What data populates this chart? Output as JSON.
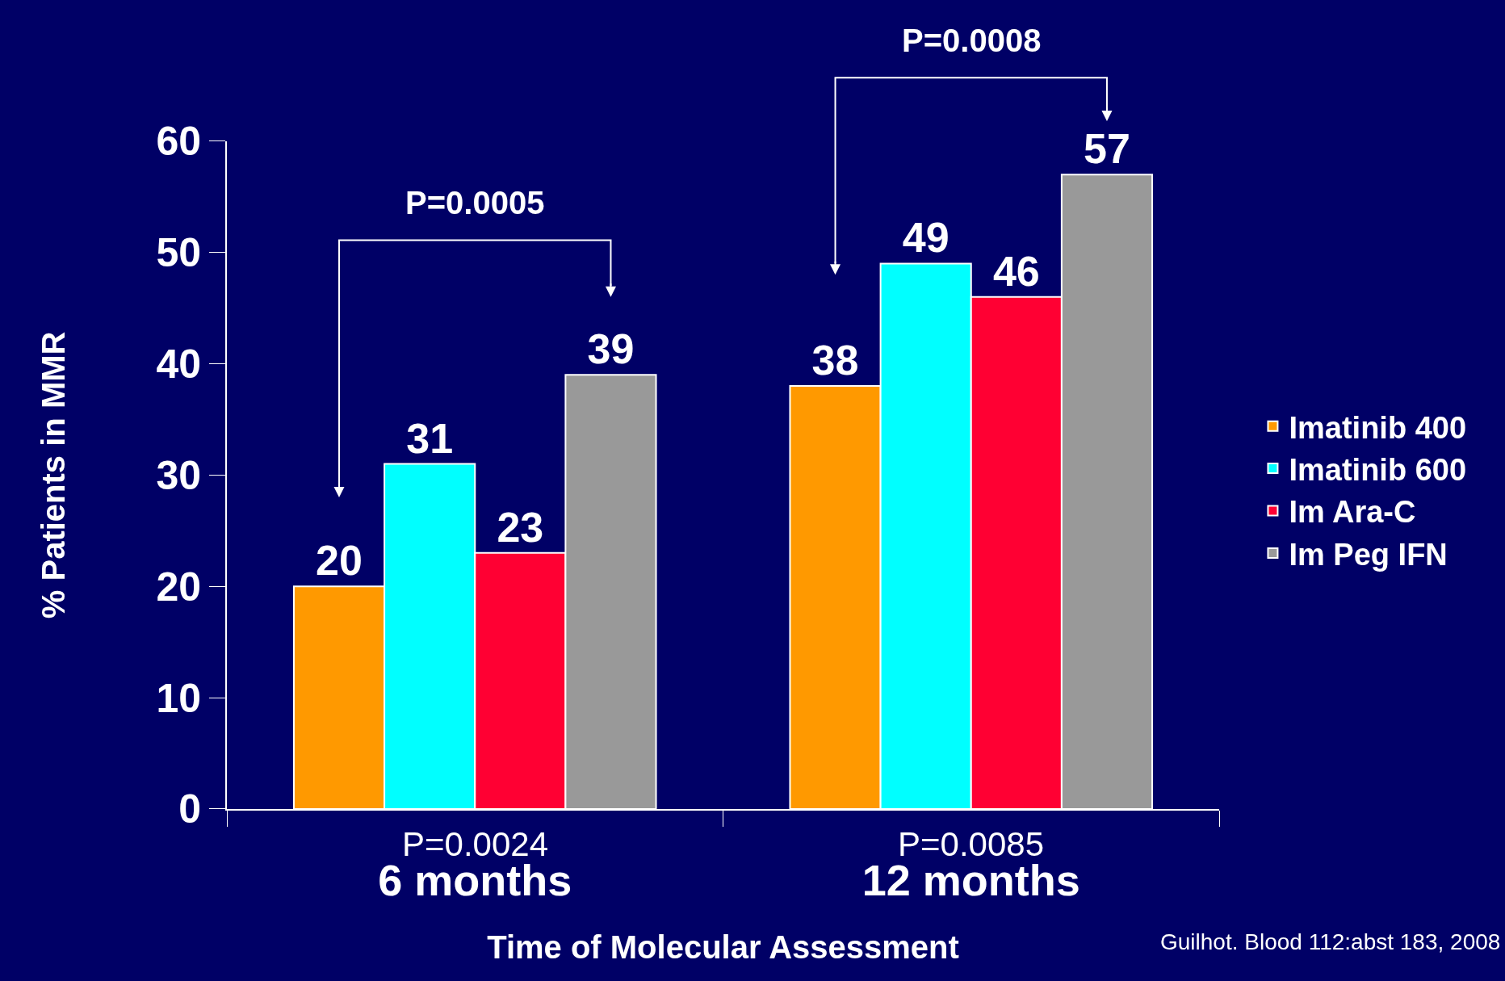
{
  "chart_data": {
    "type": "bar",
    "xlabel": "Time of Molecular Assessment",
    "ylabel": "% Patients in MMR",
    "categories": [
      "6 months",
      "12 months"
    ],
    "series": [
      {
        "name": "Imatinib 400",
        "color": "#ff9900",
        "values": [
          20,
          38
        ]
      },
      {
        "name": "Imatinib 600",
        "color": "#00ffff",
        "values": [
          31,
          49
        ]
      },
      {
        "name": "Im Ara-C",
        "color": "#ff0033",
        "values": [
          23,
          46
        ]
      },
      {
        "name": "Im Peg IFN",
        "color": "#999999",
        "values": [
          39,
          57
        ]
      }
    ],
    "ylim": [
      0,
      60
    ],
    "yticks": [
      0,
      10,
      20,
      30,
      40,
      50,
      60
    ],
    "data_labels": true,
    "grid": false,
    "legend": "right",
    "annotations": [
      "P=0.0005",
      "P=0.0008",
      "P=0.0024",
      "P=0.0085",
      "Guilhot. Blood 112:abst 183, 2008"
    ]
  }
}
